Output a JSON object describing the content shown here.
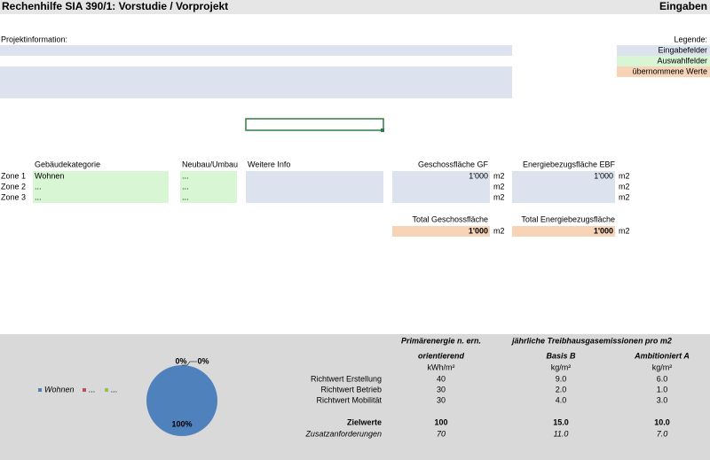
{
  "header": {
    "title": "Rechenhilfe SIA 390/1: Vorstudie / Vorprojekt",
    "mode": "Eingaben"
  },
  "project": {
    "label": "Projektinformation:"
  },
  "legend": {
    "title": "Legende:",
    "items": [
      "Eingabefelder",
      "Auswahlfelder",
      "übernommene Werte"
    ]
  },
  "zones": {
    "headers": [
      "Gebäudekategorie",
      "Neubau/Umbau",
      "Weitere Info",
      "Geschossfläche GF",
      "Energiebezugsfläche EBF"
    ],
    "rows": [
      {
        "label": "Zone 1",
        "category": "Wohnen",
        "build": "...",
        "gf": "1'000",
        "gf_unit": "m2",
        "ebf": "1'000",
        "ebf_unit": "m2"
      },
      {
        "label": "Zone 2",
        "category": "...",
        "build": "...",
        "gf_unit": "m2",
        "ebf_unit": "m2"
      },
      {
        "label": "Zone 3",
        "category": "...",
        "build": "...",
        "gf_unit": "m2",
        "ebf_unit": "m2"
      }
    ]
  },
  "totals": {
    "gf_label": "Total Geschossfläche",
    "gf": "1'000",
    "gf_unit": "m2",
    "ebf_label": "Total Energiebezugsfläche",
    "ebf": "1'000",
    "ebf_unit": "m2"
  },
  "targets": {
    "group_headers": [
      "Primärenergie n. ern.",
      "jährliche Treibhausgasemissionen pro m2"
    ],
    "columns": [
      "orientierend",
      "Basis B",
      "Ambitioniert A"
    ],
    "units": [
      "kWh/m²",
      "kg/m²",
      "kg/m²"
    ],
    "rows": [
      {
        "label": "Richtwert Erstellung",
        "values": [
          "40",
          "9.0",
          "6.0"
        ]
      },
      {
        "label": "Richtwert Betrieb",
        "values": [
          "30",
          "2.0",
          "1.0"
        ]
      },
      {
        "label": "Richtwert Mobilität",
        "values": [
          "30",
          "4.0",
          "3.0"
        ]
      }
    ],
    "total": {
      "label": "Zielwerte",
      "values": [
        "100",
        "15.0",
        "10.0"
      ]
    },
    "extra": {
      "label": "Zusatzanforderungen",
      "values": [
        "70",
        "11.0",
        "7.0"
      ]
    }
  },
  "chart_data": {
    "type": "pie",
    "categories": [
      "Wohnen",
      "...",
      "..."
    ],
    "values": [
      100,
      0,
      0
    ],
    "value_labels": [
      "100%",
      "0%",
      "0%"
    ],
    "colors": [
      "#4f81bd",
      "#c0504d",
      "#9bbb59"
    ]
  }
}
